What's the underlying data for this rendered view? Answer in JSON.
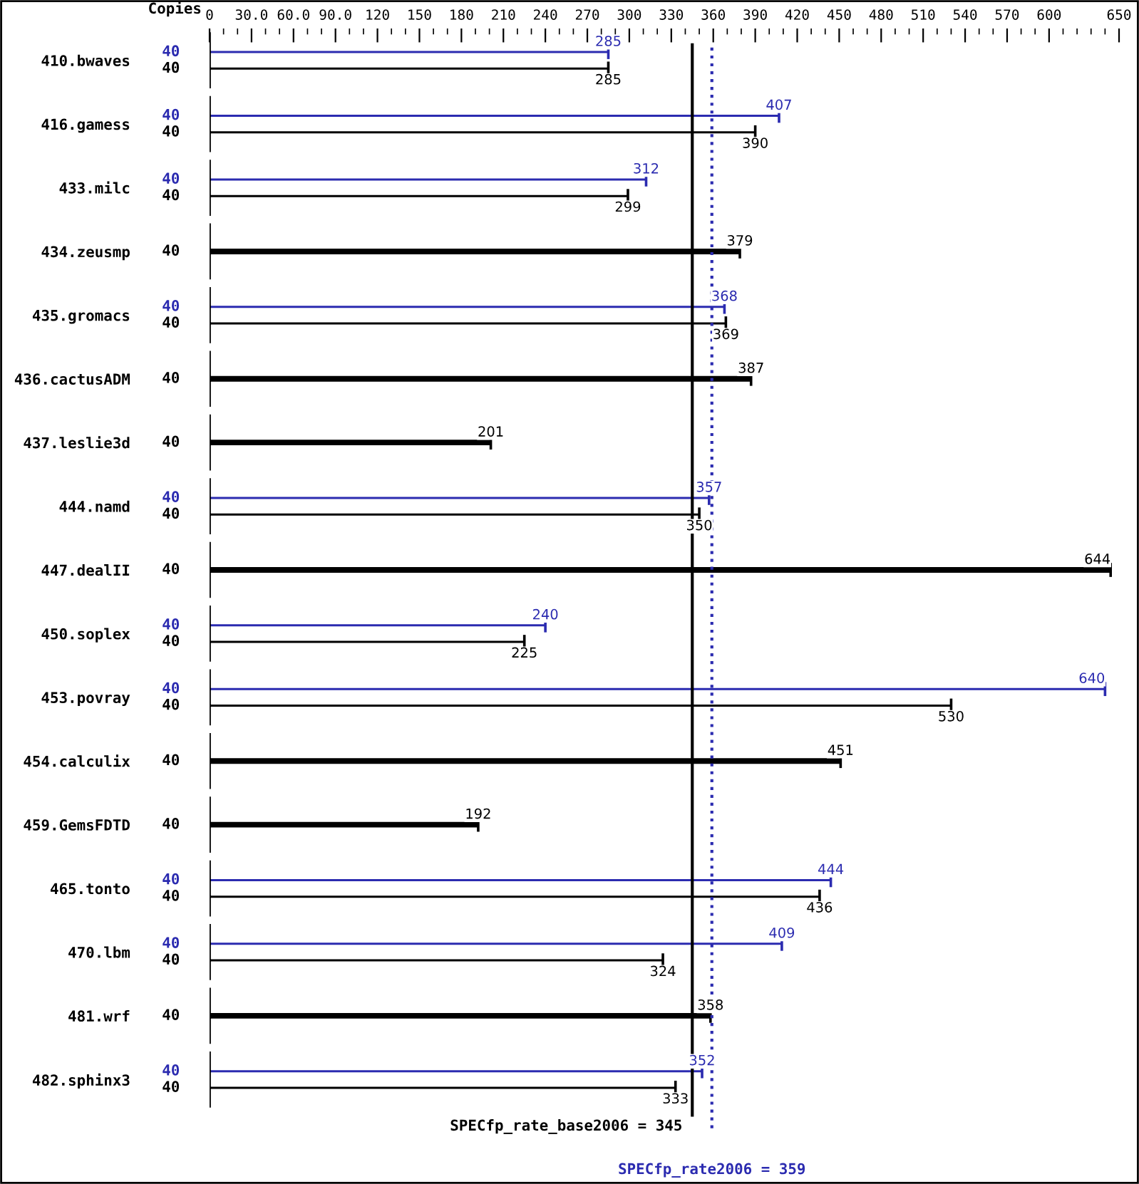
{
  "chart_data": {
    "type": "bar",
    "orientation": "horizontal",
    "categories": [
      "410.bwaves",
      "416.gamess",
      "433.milc",
      "434.zeusmp",
      "435.gromacs",
      "436.cactusADM",
      "437.leslie3d",
      "444.namd",
      "447.dealII",
      "450.soplex",
      "453.povray",
      "454.calculix",
      "459.GemsFDTD",
      "465.tonto",
      "470.lbm",
      "481.wrf",
      "482.sphinx3"
    ],
    "series": [
      {
        "color": "#2b2bb0",
        "values": [
          285,
          407,
          312,
          null,
          368,
          null,
          null,
          357,
          null,
          240,
          640,
          null,
          null,
          444,
          409,
          null,
          352
        ]
      },
      {
        "color": "#000000",
        "values": [
          285,
          390,
          299,
          379,
          369,
          387,
          201,
          350,
          644,
          225,
          530,
          451,
          192,
          436,
          324,
          358,
          333
        ]
      }
    ],
    "xlim": [
      0,
      650
    ],
    "xticks": [
      0,
      {
        "value": 30,
        "label": "30.0"
      },
      {
        "value": 60,
        "label": "60.0"
      },
      {
        "value": 90,
        "label": "90.0"
      },
      120,
      150,
      180,
      210,
      240,
      270,
      300,
      330,
      360,
      390,
      420,
      450,
      480,
      510,
      540,
      570,
      600,
      650
    ],
    "data_labels": true,
    "ref_lines": [
      {
        "axis": "x",
        "value": 345,
        "label": "SPECfp_rate_base2006 = 345",
        "color": "#000000",
        "line_style": "solid"
      },
      {
        "axis": "x",
        "value": 359,
        "label": "SPECfp_rate2006 = 359",
        "color": "#2b2bb0",
        "line_style": "dotted"
      }
    ],
    "annotations": [
      "Copies",
      "40",
      "40",
      "40",
      "40",
      "40",
      "40",
      "40",
      "40",
      "40",
      "40",
      "40",
      "40",
      "40",
      "40",
      "40",
      "40",
      "40",
      "40",
      "40",
      "40",
      "40",
      "40",
      "40",
      "40",
      "40",
      "40",
      "40"
    ],
    "legend": false,
    "grid": false
  }
}
